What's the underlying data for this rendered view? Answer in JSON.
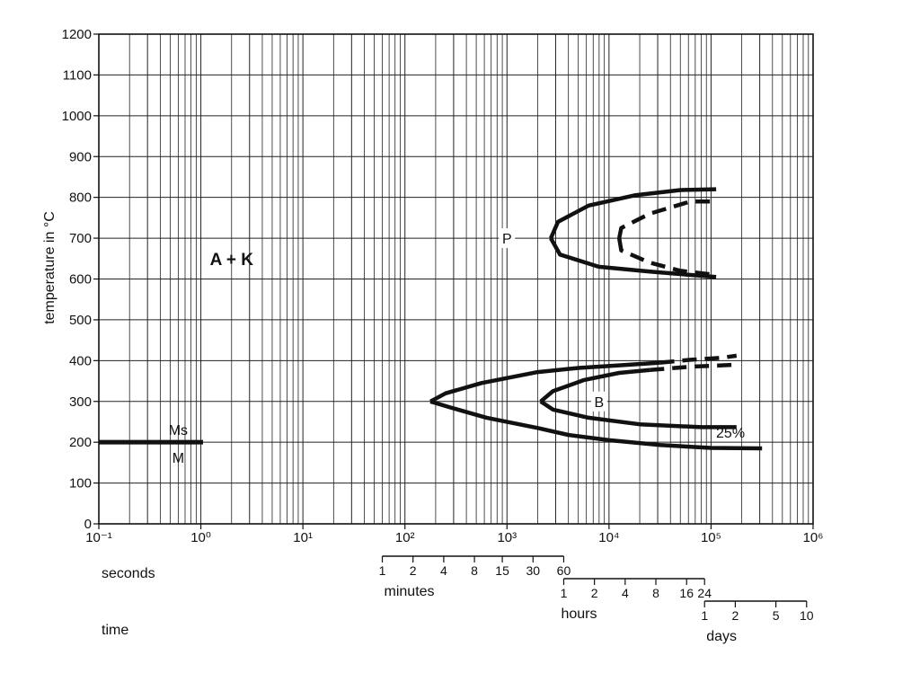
{
  "chart_data": {
    "type": "line",
    "ylabel": "temperature in °C",
    "ylim": [
      0,
      1200
    ],
    "yticks": [
      0,
      100,
      200,
      300,
      400,
      500,
      600,
      700,
      800,
      900,
      1000,
      1100,
      1200
    ],
    "x_scale": "log",
    "xlim_log10_seconds": [
      -1,
      6
    ],
    "xtick_labels": [
      "10⁻¹",
      "10⁰",
      "10¹",
      "10²",
      "10³",
      "10⁴",
      "10⁵",
      "10⁶"
    ],
    "grid": true,
    "regions": [
      {
        "label": "A + K",
        "x_s": 2,
        "y": 650
      },
      {
        "label": "P",
        "x_s": 1000,
        "y": 700
      },
      {
        "label": "B",
        "x_s": 8000,
        "y": 300
      }
    ],
    "martensite": {
      "label_above": "Ms",
      "label_below": "M",
      "y": 200,
      "x_range_s": [
        0.1,
        1.05
      ]
    },
    "series": [
      {
        "style": "solid",
        "points": [
          [
            2.25,
            3.0
          ],
          [
            2.45,
            2.85
          ],
          [
            2.8,
            2.6
          ],
          [
            3.3,
            2.35
          ],
          [
            3.6,
            2.18
          ],
          [
            4.0,
            2.05
          ],
          [
            4.5,
            1.93
          ],
          [
            5.0,
            1.86
          ],
          [
            5.5,
            1.85
          ]
        ]
      },
      {
        "style": "solid",
        "points": [
          [
            2.25,
            3.0
          ],
          [
            2.4,
            3.2
          ],
          [
            2.75,
            3.45
          ],
          [
            3.3,
            3.72
          ],
          [
            3.7,
            3.82
          ],
          [
            4.2,
            3.9
          ],
          [
            4.5,
            3.95
          ]
        ]
      },
      {
        "style": "dashed",
        "points": [
          [
            4.5,
            3.95
          ],
          [
            4.8,
            4.02
          ],
          [
            5.1,
            4.07
          ],
          [
            5.25,
            4.12
          ]
        ]
      },
      {
        "style": "solid",
        "points": [
          [
            3.33,
            3.0
          ],
          [
            3.45,
            2.8
          ],
          [
            3.8,
            2.6
          ],
          [
            4.3,
            2.44
          ],
          [
            4.9,
            2.37
          ],
          [
            5.25,
            2.37
          ]
        ]
      },
      {
        "style": "solid",
        "points": [
          [
            3.33,
            3.0
          ],
          [
            3.45,
            3.25
          ],
          [
            3.75,
            3.52
          ],
          [
            4.1,
            3.7
          ],
          [
            4.4,
            3.77
          ]
        ]
      },
      {
        "style": "dashed",
        "points": [
          [
            4.4,
            3.77
          ],
          [
            4.8,
            3.85
          ],
          [
            5.25,
            3.9
          ]
        ]
      },
      {
        "style": "solid",
        "points": [
          [
            3.43,
            7.0
          ],
          [
            3.5,
            7.4
          ],
          [
            3.8,
            7.8
          ],
          [
            4.25,
            8.05
          ],
          [
            4.7,
            8.18
          ],
          [
            5.05,
            8.2
          ]
        ]
      },
      {
        "style": "solid",
        "points": [
          [
            3.43,
            7.0
          ],
          [
            3.52,
            6.6
          ],
          [
            3.9,
            6.3
          ],
          [
            4.4,
            6.18
          ],
          [
            4.8,
            6.1
          ],
          [
            5.05,
            6.05
          ]
        ]
      },
      {
        "style": "dashed",
        "points": [
          [
            4.1,
            7.0
          ],
          [
            4.12,
            7.25
          ],
          [
            4.4,
            7.6
          ],
          [
            4.8,
            7.9
          ],
          [
            5.05,
            7.9
          ]
        ]
      },
      {
        "style": "dashed",
        "points": [
          [
            4.1,
            7.0
          ],
          [
            4.12,
            6.7
          ],
          [
            4.4,
            6.4
          ],
          [
            4.7,
            6.2
          ],
          [
            5.05,
            6.1
          ]
        ]
      }
    ],
    "series_note": "points are [log10 seconds, temperature in units of 100 °C]",
    "annotations": [
      {
        "label": "25%",
        "x_s": 155000,
        "y": 225
      }
    ]
  },
  "time_scales": {
    "seconds_label": "seconds",
    "time_label": "time",
    "minutes": {
      "label": "minutes",
      "ticks": [
        "1",
        "2",
        "4",
        "8",
        "15",
        "30",
        "60"
      ],
      "values": [
        1,
        2,
        4,
        8,
        15,
        30,
        60
      ]
    },
    "hours": {
      "label": "hours",
      "ticks": [
        "1",
        "2",
        "4",
        "8",
        "16",
        "24"
      ],
      "values": [
        1,
        2,
        4,
        8,
        16,
        24
      ]
    },
    "days": {
      "label": "days",
      "ticks": [
        "1",
        "2",
        "5",
        "10"
      ],
      "values": [
        1,
        2,
        5,
        10
      ]
    }
  },
  "colors": {
    "ink": "#111111",
    "grid": "#222222",
    "background": "#ffffff"
  }
}
